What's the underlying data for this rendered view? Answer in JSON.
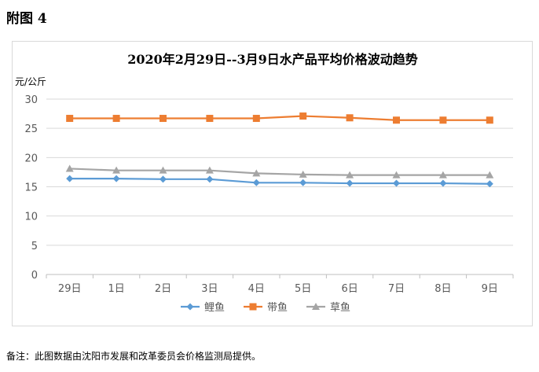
{
  "figure_label": "附图 4",
  "footnote": "备注：此图数据由沈阳市发展和改革委员会价格监测局提供。",
  "chart_data": {
    "type": "line",
    "title": "2020年2月29日--3月9日水产品平均价格波动趋势",
    "ylabel": "元/公斤",
    "xlabel": "",
    "categories": [
      "29日",
      "1日",
      "2日",
      "3日",
      "4日",
      "5日",
      "6日",
      "7日",
      "8日",
      "9日"
    ],
    "ylim": [
      0,
      30
    ],
    "yticks": [
      0,
      5,
      10,
      15,
      20,
      25,
      30
    ],
    "grid": true,
    "legend_position": "bottom",
    "series": [
      {
        "name": "鲤鱼",
        "color": "#5b9bd5",
        "marker": "diamond",
        "values": [
          16.4,
          16.4,
          16.3,
          16.3,
          15.7,
          15.7,
          15.6,
          15.6,
          15.6,
          15.5
        ]
      },
      {
        "name": "带鱼",
        "color": "#ed7d31",
        "marker": "square",
        "values": [
          26.7,
          26.7,
          26.7,
          26.7,
          26.7,
          27.1,
          26.8,
          26.4,
          26.4,
          26.4
        ]
      },
      {
        "name": "草鱼",
        "color": "#a5a5a5",
        "marker": "triangle",
        "values": [
          18.1,
          17.8,
          17.8,
          17.8,
          17.3,
          17.1,
          17.0,
          17.0,
          17.0,
          17.0
        ]
      }
    ]
  }
}
